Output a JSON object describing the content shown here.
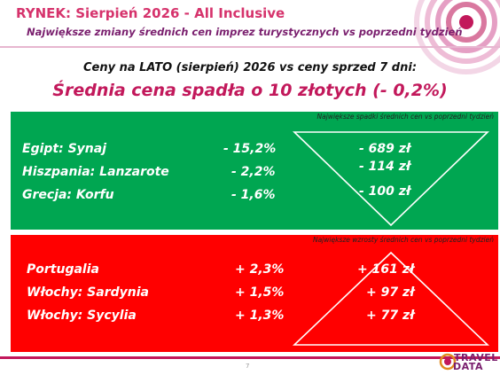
{
  "header": {
    "title": "RYNEK: Sierpień 2026 - All Inclusive",
    "subtitle": "Największe zmiany średnich cen imprez turystycznych vs poprzedni tydzień"
  },
  "summary": {
    "comparison": "Ceny na LATO (sierpień) 2026 vs ceny sprzed 7 dni:",
    "headline": "Średnia cena spadła o 10 złotych (- 0,2%)"
  },
  "decreases": {
    "caption": "Największe spadki średnich cen vs poprzedni tydzień",
    "rows": [
      {
        "label": "Egipt: Synaj",
        "pct": "-  15,2%",
        "amount": "- 689 zł"
      },
      {
        "label": "Hiszpania: Lanzarote",
        "pct": "-  2,2%",
        "amount": "- 114 zł"
      },
      {
        "label": "Grecja: Korfu",
        "pct": "-  1,6%",
        "amount": "- 100 zł"
      }
    ]
  },
  "increases": {
    "caption": "Największe wzrosty średnich cen vs poprzedni tydzień",
    "rows": [
      {
        "label": "Portugalia",
        "pct": "+ 2,3%",
        "amount": "+ 161 zł"
      },
      {
        "label": "Włochy: Sardynia",
        "pct": "+ 1,5%",
        "amount": "+ 97 zł"
      },
      {
        "label": "Włochy: Sycylia",
        "pct": "+ 1,3%",
        "amount": "+ 77 zł"
      }
    ]
  },
  "footer": {
    "page_number": "7",
    "logo_line1": "TRAVEL",
    "logo_line2": "DATA"
  },
  "colors": {
    "decrease_panel": "#00a651",
    "increase_panel": "#ff0000",
    "accent": "#c2185b",
    "brand_purple": "#7a1f6e"
  }
}
